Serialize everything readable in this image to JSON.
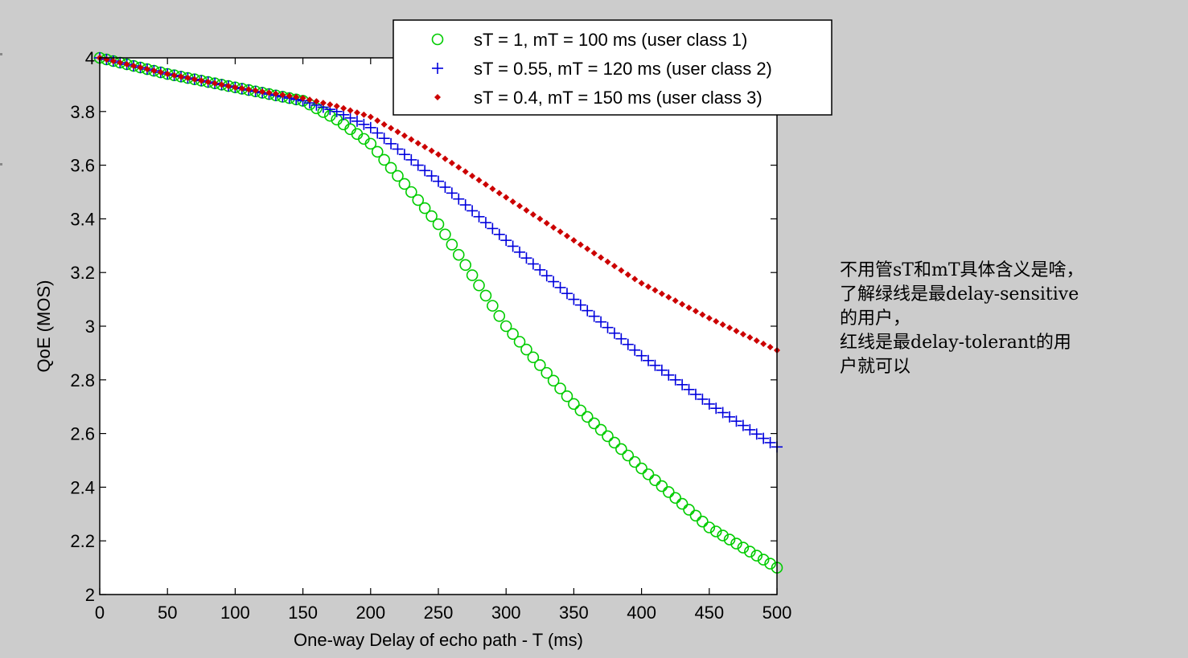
{
  "chart_data": {
    "type": "line",
    "xlabel": "One-way Delay of echo path - T (ms)",
    "ylabel": "QoE (MOS)",
    "xlim": [
      0,
      500
    ],
    "ylim": [
      2,
      4
    ],
    "xticks": [
      0,
      50,
      100,
      150,
      200,
      250,
      300,
      350,
      400,
      450,
      500
    ],
    "yticks": [
      2,
      2.2,
      2.4,
      2.6,
      2.8,
      3,
      3.2,
      3.4,
      3.6,
      3.8,
      4
    ],
    "ytick_labels": [
      "2",
      "2.2",
      "2.4",
      "2.6",
      "2.8",
      "3",
      "3.2",
      "3.4",
      "3.6",
      "3.8",
      "4"
    ],
    "grid": false,
    "legend_position": "top-right",
    "x": [
      0,
      50,
      100,
      150,
      175,
      200,
      250,
      300,
      350,
      400,
      450,
      500
    ],
    "series": [
      {
        "name": "sT = 1, mT = 100 ms (user class 1)",
        "marker": "circle",
        "color": "#00cc00",
        "values": [
          4.0,
          3.94,
          3.89,
          3.84,
          3.77,
          3.68,
          3.38,
          3.0,
          2.71,
          2.47,
          2.25,
          2.1
        ]
      },
      {
        "name": "sT = 0.55, mT = 120 ms (user class 2)",
        "marker": "plus",
        "color": "#0000dd",
        "values": [
          4.0,
          3.94,
          3.89,
          3.84,
          3.8,
          3.74,
          3.54,
          3.32,
          3.1,
          2.89,
          2.71,
          2.55
        ]
      },
      {
        "name": "sT = 0.4, mT = 150 ms (user class 3)",
        "marker": "dot",
        "color": "#cc0000",
        "values": [
          4.0,
          3.94,
          3.89,
          3.85,
          3.82,
          3.78,
          3.64,
          3.48,
          3.32,
          3.16,
          3.03,
          2.91
        ]
      }
    ]
  },
  "annotation": {
    "lines": [
      "不用管sT和mT具体含义是啥，",
      "了解绿线是最delay-sensitive",
      "的用户，",
      "红线是最delay-tolerant的用",
      "户就可以"
    ]
  }
}
